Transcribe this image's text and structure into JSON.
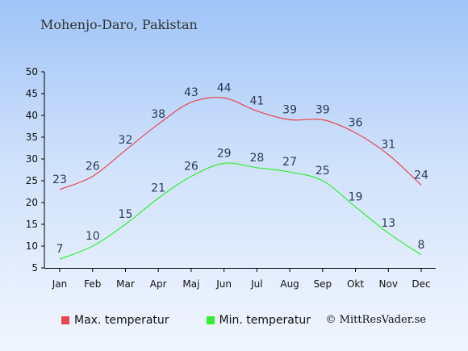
{
  "title": "Mohenjo-Daro, Pakistan",
  "credit": "© MittResVader.se",
  "colors": {
    "max": "#e8474d",
    "min": "#33ee2f"
  },
  "chart_data": {
    "type": "line",
    "categories": [
      "Jan",
      "Feb",
      "Mar",
      "Apr",
      "Maj",
      "Jun",
      "Jul",
      "Aug",
      "Sep",
      "Okt",
      "Nov",
      "Dec"
    ],
    "series": [
      {
        "name": "Max. temperatur",
        "values": [
          23,
          26,
          32,
          38,
          43,
          44,
          41,
          39,
          39,
          36,
          31,
          24
        ]
      },
      {
        "name": "Min. temperatur",
        "values": [
          7,
          10,
          15,
          21,
          26,
          29,
          28,
          27,
          25,
          19,
          13,
          8
        ]
      }
    ],
    "yticks": [
      5,
      10,
      15,
      20,
      25,
      30,
      35,
      40,
      45,
      50
    ],
    "ylim": [
      5,
      50
    ],
    "grid": false,
    "legend": "bottom"
  }
}
